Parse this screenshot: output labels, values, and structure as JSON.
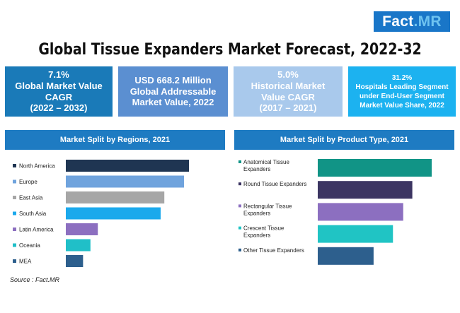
{
  "logo": {
    "main": "Fact",
    "suffix": ".MR"
  },
  "title": "Global Tissue Expanders Market Forecast, 2022-32",
  "kpis": [
    {
      "lines": [
        "7.1%",
        "Global Market Value",
        "CAGR",
        "(2022 – 2032)"
      ]
    },
    {
      "lines": [
        "USD 668.2 Million",
        "Global Addressable",
        "Market Value, 2022"
      ]
    },
    {
      "lines": [
        "5.0%",
        "Historical Market",
        "Value CAGR",
        "(2017 – 2021)"
      ]
    },
    {
      "lines": [
        "31.2%",
        "Hospitals Leading Segment",
        "under End-User Segment",
        "Market Value Share, 2022"
      ]
    }
  ],
  "chart_data": [
    {
      "type": "bar",
      "title": "Market Split by Regions, 2021",
      "orientation": "horizontal",
      "categories": [
        "North America",
        "Europe",
        "East Asia",
        "South Asia",
        "Latin America",
        "Oceania",
        "MEA"
      ],
      "values": [
        100,
        96,
        80,
        77,
        26,
        20,
        14
      ],
      "colors": [
        "#1f3552",
        "#6fa3dd",
        "#a6a6a6",
        "#1ba9ec",
        "#8c6fc0",
        "#20bfc8",
        "#2d5f8d"
      ],
      "legend": "left",
      "grid": false
    },
    {
      "type": "bar",
      "title": "Market Split by Product Type, 2021",
      "orientation": "horizontal",
      "categories": [
        "Anatomical Tissue Expanders",
        "Round Tissue Expanders",
        "Rectangular Tissue Expanders",
        "Crescent Tissue Expanders",
        "Other Tissue Expanders"
      ],
      "values": [
        100,
        83,
        75,
        66,
        49
      ],
      "colors": [
        "#119486",
        "#3c3562",
        "#8c6fc0",
        "#20c4c4",
        "#2d5f8d"
      ],
      "legend": "left",
      "grid": false
    }
  ],
  "source": "Source : Fact.MR"
}
